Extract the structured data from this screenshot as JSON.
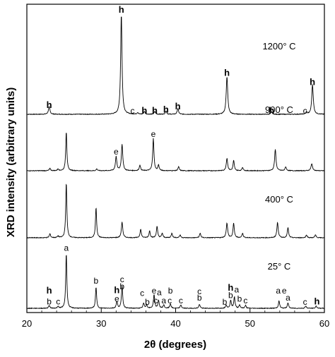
{
  "chart_data": {
    "type": "line",
    "xlabel": "2θ  (degrees)",
    "ylabel": "XRD intensity (arbitrary units)",
    "xlim": [
      20,
      60
    ],
    "xticks": [
      20,
      30,
      40,
      50,
      60
    ],
    "xtick_labels": [
      "20",
      "30",
      "40",
      "50",
      "60"
    ],
    "series": [
      {
        "name": "1200° C",
        "baseline": 0.08,
        "noise": 0.003,
        "peaks": [
          {
            "x": 23.0,
            "h": 0.13,
            "w": 0.25
          },
          {
            "x": 32.7,
            "h": 1.78,
            "w": 0.22
          },
          {
            "x": 34.9,
            "h": 0.03,
            "w": 0.2
          },
          {
            "x": 35.8,
            "h": 0.05,
            "w": 0.2
          },
          {
            "x": 37.2,
            "h": 0.05,
            "w": 0.2
          },
          {
            "x": 38.7,
            "h": 0.06,
            "w": 0.2
          },
          {
            "x": 40.3,
            "h": 0.1,
            "w": 0.22
          },
          {
            "x": 46.9,
            "h": 0.67,
            "w": 0.24
          },
          {
            "x": 52.9,
            "h": 0.04,
            "w": 0.22
          },
          {
            "x": 57.6,
            "h": 0.04,
            "w": 0.2
          },
          {
            "x": 58.4,
            "h": 0.53,
            "w": 0.24
          }
        ],
        "labels": [
          {
            "x": 23.0,
            "y": 0.19,
            "text": "h",
            "bold": true
          },
          {
            "x": 32.7,
            "y": 1.88,
            "text": "h",
            "bold": true
          },
          {
            "x": 34.2,
            "y": 0.09,
            "text": "c",
            "bold": false
          },
          {
            "x": 35.8,
            "y": 0.09,
            "text": "h",
            "bold": true
          },
          {
            "x": 37.2,
            "y": 0.09,
            "text": "h",
            "bold": true
          },
          {
            "x": 38.7,
            "y": 0.11,
            "text": "h",
            "bold": true
          },
          {
            "x": 40.3,
            "y": 0.17,
            "text": "h",
            "bold": true
          },
          {
            "x": 46.9,
            "y": 0.76,
            "text": "h",
            "bold": true
          },
          {
            "x": 52.9,
            "y": 0.09,
            "text": "h",
            "bold": true
          },
          {
            "x": 57.4,
            "y": 0.09,
            "text": "c",
            "bold": false
          },
          {
            "x": 58.4,
            "y": 0.6,
            "text": "h",
            "bold": true
          }
        ]
      },
      {
        "name": "900° C",
        "baseline": 0.08,
        "noise": 0.003,
        "peaks": [
          {
            "x": 23.1,
            "h": 0.04,
            "w": 0.2
          },
          {
            "x": 24.2,
            "h": 0.03,
            "w": 0.2
          },
          {
            "x": 25.3,
            "h": 0.7,
            "w": 0.18
          },
          {
            "x": 29.4,
            "h": 0.03,
            "w": 0.2
          },
          {
            "x": 32.0,
            "h": 0.25,
            "w": 0.22
          },
          {
            "x": 32.8,
            "h": 0.47,
            "w": 0.22
          },
          {
            "x": 35.2,
            "h": 0.1,
            "w": 0.2
          },
          {
            "x": 37.0,
            "h": 0.57,
            "w": 0.2
          },
          {
            "x": 37.7,
            "h": 0.1,
            "w": 0.2
          },
          {
            "x": 40.4,
            "h": 0.07,
            "w": 0.2
          },
          {
            "x": 46.9,
            "h": 0.22,
            "w": 0.22
          },
          {
            "x": 47.8,
            "h": 0.18,
            "w": 0.2
          },
          {
            "x": 49.0,
            "h": 0.06,
            "w": 0.2
          },
          {
            "x": 53.4,
            "h": 0.38,
            "w": 0.22
          },
          {
            "x": 54.8,
            "h": 0.07,
            "w": 0.2
          },
          {
            "x": 58.3,
            "h": 0.12,
            "w": 0.25
          }
        ],
        "labels": [
          {
            "x": 32.0,
            "y": 0.37,
            "text": "e",
            "bold": false
          },
          {
            "x": 37.0,
            "y": 0.68,
            "text": "e",
            "bold": false
          }
        ]
      },
      {
        "name": "400° C",
        "baseline": 0.08,
        "noise": 0.003,
        "peaks": [
          {
            "x": 23.1,
            "h": 0.07,
            "w": 0.2
          },
          {
            "x": 24.2,
            "h": 0.03,
            "w": 0.2
          },
          {
            "x": 25.3,
            "h": 0.98,
            "w": 0.18
          },
          {
            "x": 29.3,
            "h": 0.54,
            "w": 0.18
          },
          {
            "x": 32.8,
            "h": 0.28,
            "w": 0.22
          },
          {
            "x": 35.3,
            "h": 0.15,
            "w": 0.2
          },
          {
            "x": 36.5,
            "h": 0.12,
            "w": 0.2
          },
          {
            "x": 37.5,
            "h": 0.2,
            "w": 0.2
          },
          {
            "x": 38.2,
            "h": 0.08,
            "w": 0.2
          },
          {
            "x": 39.5,
            "h": 0.08,
            "w": 0.2
          },
          {
            "x": 40.6,
            "h": 0.05,
            "w": 0.2
          },
          {
            "x": 43.3,
            "h": 0.08,
            "w": 0.2
          },
          {
            "x": 46.9,
            "h": 0.26,
            "w": 0.22
          },
          {
            "x": 47.8,
            "h": 0.26,
            "w": 0.2
          },
          {
            "x": 49.0,
            "h": 0.08,
            "w": 0.2
          },
          {
            "x": 53.7,
            "h": 0.27,
            "w": 0.22
          },
          {
            "x": 55.1,
            "h": 0.18,
            "w": 0.2
          },
          {
            "x": 57.6,
            "h": 0.05,
            "w": 0.2
          },
          {
            "x": 58.8,
            "h": 0.05,
            "w": 0.2
          }
        ],
        "labels": []
      },
      {
        "name": "25° C",
        "baseline": 0.1,
        "noise": 0.003,
        "peaks": [
          {
            "x": 23.0,
            "h": 0.05,
            "w": 0.2
          },
          {
            "x": 24.2,
            "h": 0.03,
            "w": 0.2
          },
          {
            "x": 25.3,
            "h": 0.98,
            "w": 0.18
          },
          {
            "x": 29.3,
            "h": 0.38,
            "w": 0.18
          },
          {
            "x": 32.1,
            "h": 0.12,
            "w": 0.2
          },
          {
            "x": 32.8,
            "h": 0.4,
            "w": 0.2
          },
          {
            "x": 35.7,
            "h": 0.09,
            "w": 0.2
          },
          {
            "x": 36.1,
            "h": 0.06,
            "w": 0.2
          },
          {
            "x": 37.1,
            "h": 0.24,
            "w": 0.2
          },
          {
            "x": 37.7,
            "h": 0.14,
            "w": 0.2
          },
          {
            "x": 38.4,
            "h": 0.06,
            "w": 0.2
          },
          {
            "x": 39.3,
            "h": 0.08,
            "w": 0.2
          },
          {
            "x": 40.7,
            "h": 0.06,
            "w": 0.2
          },
          {
            "x": 43.2,
            "h": 0.07,
            "w": 0.2
          },
          {
            "x": 46.8,
            "h": 0.06,
            "w": 0.2
          },
          {
            "x": 47.4,
            "h": 0.14,
            "w": 0.2
          },
          {
            "x": 47.9,
            "h": 0.2,
            "w": 0.2
          },
          {
            "x": 48.6,
            "h": 0.06,
            "w": 0.2
          },
          {
            "x": 49.4,
            "h": 0.05,
            "w": 0.2
          },
          {
            "x": 53.9,
            "h": 0.13,
            "w": 0.2
          },
          {
            "x": 55.1,
            "h": 0.1,
            "w": 0.2
          },
          {
            "x": 57.5,
            "h": 0.04,
            "w": 0.2
          },
          {
            "x": 58.9,
            "h": 0.04,
            "w": 0.2
          }
        ],
        "labels": [
          {
            "x": 25.3,
            "y": 1.12,
            "text": "a",
            "bold": false
          },
          {
            "x": 23.0,
            "y": 0.36,
            "text": "h",
            "bold": true
          },
          {
            "x": 23.0,
            "y": 0.17,
            "text": "b",
            "bold": false
          },
          {
            "x": 24.2,
            "y": 0.17,
            "text": "c",
            "bold": false
          },
          {
            "x": 29.3,
            "y": 0.54,
            "text": "b",
            "bold": false
          },
          {
            "x": 32.1,
            "y": 0.37,
            "text": "h",
            "bold": true
          },
          {
            "x": 32.1,
            "y": 0.22,
            "text": "e",
            "bold": false
          },
          {
            "x": 32.8,
            "y": 0.56,
            "text": "c",
            "bold": false
          },
          {
            "x": 32.8,
            "y": 0.44,
            "text": "b",
            "bold": false
          },
          {
            "x": 35.5,
            "y": 0.32,
            "text": "c",
            "bold": false
          },
          {
            "x": 36.2,
            "y": 0.16,
            "text": "b",
            "bold": false
          },
          {
            "x": 37.1,
            "y": 0.36,
            "text": "e",
            "bold": false
          },
          {
            "x": 37.8,
            "y": 0.33,
            "text": "a",
            "bold": false
          },
          {
            "x": 37.3,
            "y": 0.19,
            "text": "c",
            "bold": false
          },
          {
            "x": 38.4,
            "y": 0.19,
            "text": "a",
            "bold": false
          },
          {
            "x": 39.2,
            "y": 0.19,
            "text": "c",
            "bold": false
          },
          {
            "x": 39.3,
            "y": 0.36,
            "text": "b",
            "bold": false
          },
          {
            "x": 40.7,
            "y": 0.19,
            "text": "c",
            "bold": false
          },
          {
            "x": 43.2,
            "y": 0.35,
            "text": "c",
            "bold": false
          },
          {
            "x": 43.2,
            "y": 0.24,
            "text": "b",
            "bold": false
          },
          {
            "x": 46.6,
            "y": 0.16,
            "text": "b",
            "bold": false
          },
          {
            "x": 47.4,
            "y": 0.41,
            "text": "h",
            "bold": true
          },
          {
            "x": 47.4,
            "y": 0.28,
            "text": "b",
            "bold": false
          },
          {
            "x": 48.2,
            "y": 0.38,
            "text": "a",
            "bold": false
          },
          {
            "x": 48.6,
            "y": 0.22,
            "text": "b",
            "bold": false
          },
          {
            "x": 49.4,
            "y": 0.19,
            "text": "c",
            "bold": false
          },
          {
            "x": 53.8,
            "y": 0.36,
            "text": "a",
            "bold": false
          },
          {
            "x": 54.6,
            "y": 0.36,
            "text": "e",
            "bold": false
          },
          {
            "x": 55.1,
            "y": 0.24,
            "text": "a",
            "bold": false
          },
          {
            "x": 57.4,
            "y": 0.16,
            "text": "c",
            "bold": false
          },
          {
            "x": 59.0,
            "y": 0.17,
            "text": "h",
            "bold": true
          }
        ]
      }
    ]
  }
}
